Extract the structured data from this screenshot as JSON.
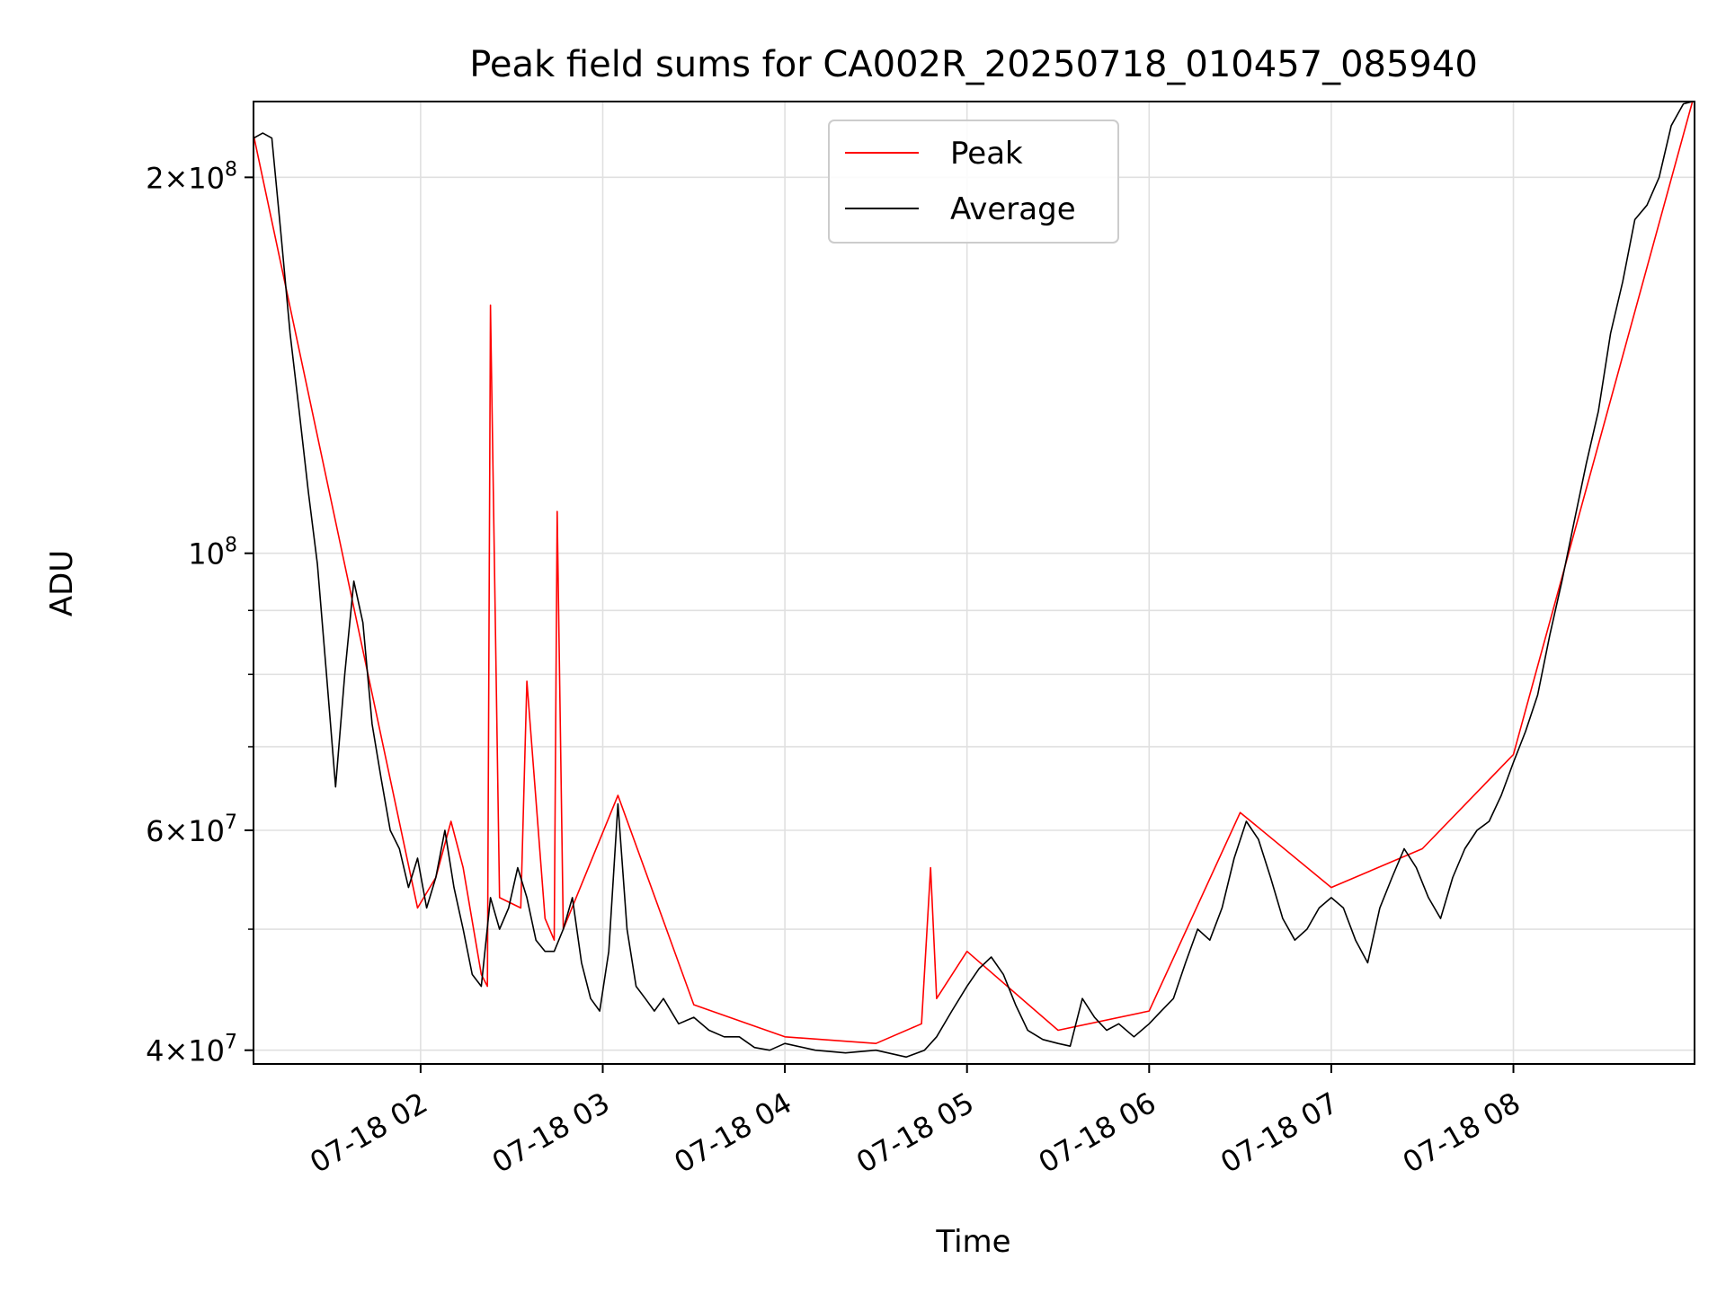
{
  "chart_data": {
    "type": "line",
    "title": "Peak field sums for CA002R_20250718_010457_085940",
    "xlabel": "Time",
    "ylabel": "ADU",
    "xlim": [
      "2025-07-18 01:04:57",
      "2025-07-18 08:59:40"
    ],
    "ylim": [
      39000000,
      230000000
    ],
    "yscale": "log",
    "grid": true,
    "legend_position": "upper-center",
    "x_ticks": [
      {
        "value": "2025-07-18 02:00",
        "label": "07-18 02"
      },
      {
        "value": "2025-07-18 03:00",
        "label": "07-18 03"
      },
      {
        "value": "2025-07-18 04:00",
        "label": "07-18 04"
      },
      {
        "value": "2025-07-18 05:00",
        "label": "07-18 05"
      },
      {
        "value": "2025-07-18 06:00",
        "label": "07-18 06"
      },
      {
        "value": "2025-07-18 07:00",
        "label": "07-18 07"
      },
      {
        "value": "2025-07-18 08:00",
        "label": "07-18 08"
      }
    ],
    "y_ticks": [
      {
        "value": 40000000,
        "mantissa": "4",
        "exponent": "7"
      },
      {
        "value": 60000000,
        "mantissa": "6",
        "exponent": "7"
      },
      {
        "value": 100000000,
        "mantissa": "",
        "exponent": "8"
      },
      {
        "value": 200000000,
        "mantissa": "2",
        "exponent": "8"
      }
    ],
    "y_minor_ticks": [
      50000000,
      70000000,
      80000000,
      90000000
    ],
    "series": [
      {
        "name": "Average",
        "color": "#000000",
        "x": [
          "2025-07-18 01:05",
          "2025-07-18 01:08",
          "2025-07-18 01:11",
          "2025-07-18 01:14",
          "2025-07-18 01:17",
          "2025-07-18 01:20",
          "2025-07-18 01:23",
          "2025-07-18 01:26",
          "2025-07-18 01:29",
          "2025-07-18 01:32",
          "2025-07-18 01:35",
          "2025-07-18 01:38",
          "2025-07-18 01:41",
          "2025-07-18 01:44",
          "2025-07-18 01:47",
          "2025-07-18 01:50",
          "2025-07-18 01:53",
          "2025-07-18 01:56",
          "2025-07-18 01:59",
          "2025-07-18 02:02",
          "2025-07-18 02:05",
          "2025-07-18 02:08",
          "2025-07-18 02:11",
          "2025-07-18 02:14",
          "2025-07-18 02:17",
          "2025-07-18 02:20",
          "2025-07-18 02:23",
          "2025-07-18 02:26",
          "2025-07-18 02:29",
          "2025-07-18 02:32",
          "2025-07-18 02:35",
          "2025-07-18 02:38",
          "2025-07-18 02:41",
          "2025-07-18 02:44",
          "2025-07-18 02:47",
          "2025-07-18 02:50",
          "2025-07-18 02:53",
          "2025-07-18 02:56",
          "2025-07-18 02:59",
          "2025-07-18 03:02",
          "2025-07-18 03:05",
          "2025-07-18 03:08",
          "2025-07-18 03:11",
          "2025-07-18 03:14",
          "2025-07-18 03:17",
          "2025-07-18 03:20",
          "2025-07-18 03:25",
          "2025-07-18 03:30",
          "2025-07-18 03:35",
          "2025-07-18 03:40",
          "2025-07-18 03:45",
          "2025-07-18 03:50",
          "2025-07-18 03:55",
          "2025-07-18 04:00",
          "2025-07-18 04:10",
          "2025-07-18 04:20",
          "2025-07-18 04:30",
          "2025-07-18 04:40",
          "2025-07-18 04:46",
          "2025-07-18 04:50",
          "2025-07-18 04:55",
          "2025-07-18 05:00",
          "2025-07-18 05:04",
          "2025-07-18 05:08",
          "2025-07-18 05:12",
          "2025-07-18 05:16",
          "2025-07-18 05:20",
          "2025-07-18 05:25",
          "2025-07-18 05:30",
          "2025-07-18 05:34",
          "2025-07-18 05:38",
          "2025-07-18 05:42",
          "2025-07-18 05:46",
          "2025-07-18 05:50",
          "2025-07-18 05:55",
          "2025-07-18 06:00",
          "2025-07-18 06:04",
          "2025-07-18 06:08",
          "2025-07-18 06:12",
          "2025-07-18 06:16",
          "2025-07-18 06:20",
          "2025-07-18 06:24",
          "2025-07-18 06:28",
          "2025-07-18 06:32",
          "2025-07-18 06:36",
          "2025-07-18 06:40",
          "2025-07-18 06:44",
          "2025-07-18 06:48",
          "2025-07-18 06:52",
          "2025-07-18 06:56",
          "2025-07-18 07:00",
          "2025-07-18 07:04",
          "2025-07-18 07:08",
          "2025-07-18 07:12",
          "2025-07-18 07:16",
          "2025-07-18 07:20",
          "2025-07-18 07:24",
          "2025-07-18 07:28",
          "2025-07-18 07:32",
          "2025-07-18 07:36",
          "2025-07-18 07:40",
          "2025-07-18 07:44",
          "2025-07-18 07:48",
          "2025-07-18 07:52",
          "2025-07-18 07:56",
          "2025-07-18 08:00",
          "2025-07-18 08:04",
          "2025-07-18 08:08",
          "2025-07-18 08:12",
          "2025-07-18 08:16",
          "2025-07-18 08:20",
          "2025-07-18 08:24",
          "2025-07-18 08:28",
          "2025-07-18 08:32",
          "2025-07-18 08:36",
          "2025-07-18 08:40",
          "2025-07-18 08:44",
          "2025-07-18 08:48",
          "2025-07-18 08:52",
          "2025-07-18 08:56",
          "2025-07-18 08:59"
        ],
        "values": [
          215000000,
          217000000,
          215000000,
          180000000,
          150000000,
          130000000,
          112000000,
          98000000,
          80000000,
          65000000,
          80000000,
          95000000,
          88000000,
          73000000,
          66000000,
          60000000,
          58000000,
          54000000,
          57000000,
          52000000,
          55000000,
          60000000,
          54000000,
          50000000,
          46000000,
          45000000,
          53000000,
          50000000,
          52000000,
          56000000,
          53000000,
          49000000,
          48000000,
          48000000,
          50000000,
          53000000,
          47000000,
          44000000,
          43000000,
          48000000,
          63000000,
          50000000,
          45000000,
          44000000,
          43000000,
          44000000,
          42000000,
          42500000,
          41500000,
          41000000,
          41000000,
          40200000,
          40000000,
          40500000,
          40000000,
          39800000,
          40000000,
          39500000,
          40000000,
          41000000,
          43000000,
          45000000,
          46500000,
          47500000,
          46000000,
          43500000,
          41500000,
          40800000,
          40500000,
          40300000,
          44000000,
          42500000,
          41500000,
          42000000,
          41000000,
          42000000,
          43000000,
          44000000,
          47000000,
          50000000,
          49000000,
          52000000,
          57000000,
          61000000,
          59000000,
          55000000,
          51000000,
          49000000,
          50000000,
          52000000,
          53000000,
          52000000,
          49000000,
          47000000,
          52000000,
          55000000,
          58000000,
          56000000,
          53000000,
          51000000,
          55000000,
          58000000,
          60000000,
          61000000,
          64000000,
          68000000,
          72000000,
          77000000,
          86000000,
          95000000,
          106000000,
          118000000,
          130000000,
          150000000,
          165000000,
          185000000,
          190000000,
          200000000,
          220000000,
          229000000,
          230000000
        ]
      },
      {
        "name": "Peak",
        "color": "#ff0000",
        "x": [
          "2025-07-18 01:05",
          "2025-07-18 01:59",
          "2025-07-18 02:05",
          "2025-07-18 02:10",
          "2025-07-18 02:14",
          "2025-07-18 02:20",
          "2025-07-18 02:22",
          "2025-07-18 02:23",
          "2025-07-18 02:26",
          "2025-07-18 02:33",
          "2025-07-18 02:35",
          "2025-07-18 02:41",
          "2025-07-18 02:44",
          "2025-07-18 02:45",
          "2025-07-18 02:47",
          "2025-07-18 03:05",
          "2025-07-18 03:30",
          "2025-07-18 04:00",
          "2025-07-18 04:30",
          "2025-07-18 04:45",
          "2025-07-18 04:48",
          "2025-07-18 04:50",
          "2025-07-18 05:00",
          "2025-07-18 05:30",
          "2025-07-18 06:00",
          "2025-07-18 06:30",
          "2025-07-18 07:00",
          "2025-07-18 07:30",
          "2025-07-18 08:00",
          "2025-07-18 08:59"
        ],
        "values": [
          216000000,
          52000000,
          55000000,
          61000000,
          56000000,
          46000000,
          45000000,
          158000000,
          53000000,
          52000000,
          79000000,
          51000000,
          49000000,
          108000000,
          50000000,
          64000000,
          43500000,
          41000000,
          40500000,
          42000000,
          56000000,
          44000000,
          48000000,
          41500000,
          43000000,
          62000000,
          54000000,
          58000000,
          69000000,
          230000000
        ]
      }
    ],
    "legend": [
      {
        "label": "Peak",
        "color": "#ff0000"
      },
      {
        "label": "Average",
        "color": "#000000"
      }
    ]
  }
}
